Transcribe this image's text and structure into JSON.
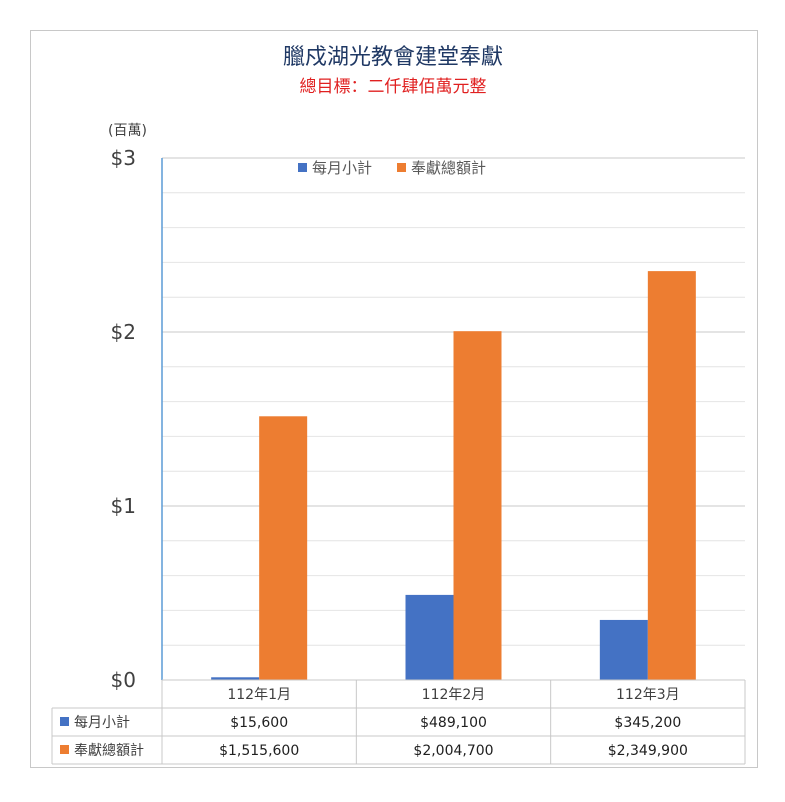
{
  "chart_data": {
    "type": "bar",
    "title": "臘戍湖光教會建堂奉獻",
    "subtitle": "總目標：二仟肆佰萬元整",
    "unit_label": "(百萬)",
    "categories": [
      "112年1月",
      "112年2月",
      "112年3月"
    ],
    "series": [
      {
        "name": "每月小計",
        "color": "#4472c4",
        "values": [
          15600,
          489100,
          345200
        ],
        "labels": [
          "$15,600",
          "$489,100",
          "$345,200"
        ]
      },
      {
        "name": "奉獻總額計",
        "color": "#ed7d31",
        "values": [
          1515600,
          2004700,
          2349900
        ],
        "labels": [
          "$1,515,600",
          "$2,004,700",
          "$2,349,900"
        ]
      }
    ],
    "ylim": [
      0,
      3000000
    ],
    "yticks": [
      {
        "value": 0,
        "label": "$0"
      },
      {
        "value": 1000000,
        "label": "$1"
      },
      {
        "value": 2000000,
        "label": "$2"
      },
      {
        "value": 3000000,
        "label": "$3"
      }
    ],
    "minor_step": 200000,
    "grid": true,
    "legend_position": "top",
    "data_table": true
  }
}
